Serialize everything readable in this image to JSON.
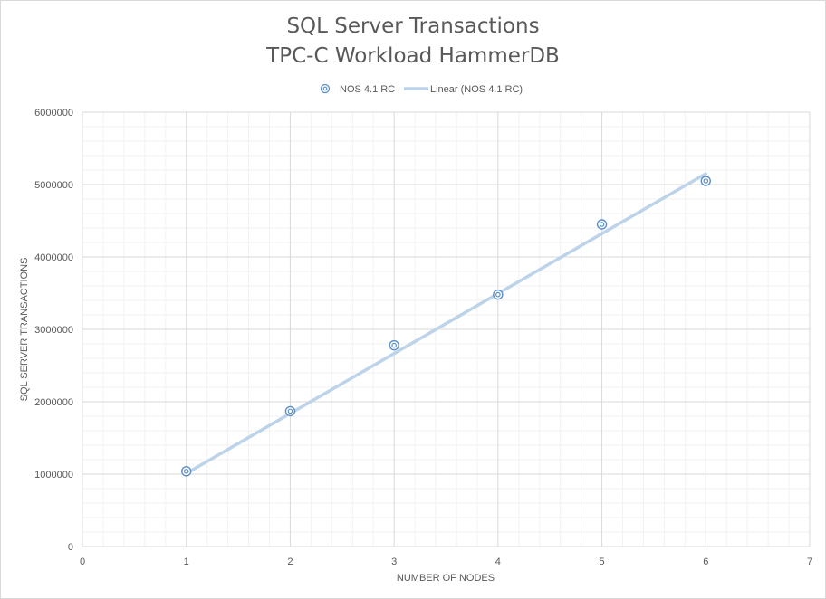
{
  "chart_data": {
    "type": "scatter",
    "title_lines": [
      "SQL Server Transactions",
      "TPC-C Workload HammerDB"
    ],
    "xlabel": "NUMBER OF NODES",
    "ylabel": "SQL SERVER TRANSACTIONS",
    "xlim": [
      0,
      7
    ],
    "ylim": [
      0,
      6000000
    ],
    "x_ticks": [
      0,
      1,
      2,
      3,
      4,
      5,
      6,
      7
    ],
    "y_ticks": [
      0,
      1000000,
      2000000,
      3000000,
      4000000,
      5000000,
      6000000
    ],
    "grid": true,
    "legend_position": "top",
    "series": [
      {
        "name": "NOS 4.1 RC",
        "x": [
          1,
          2,
          3,
          4,
          5,
          6
        ],
        "y": [
          1040000,
          1870000,
          2780000,
          3480000,
          4450000,
          5050000
        ],
        "color": "#5b8fc9"
      }
    ],
    "trendline": {
      "name": "Linear (NOS 4.1 RC)",
      "type": "linear",
      "x": [
        1,
        6
      ],
      "y": [
        1010000,
        5150000
      ],
      "color": "#bdd3ea"
    }
  }
}
